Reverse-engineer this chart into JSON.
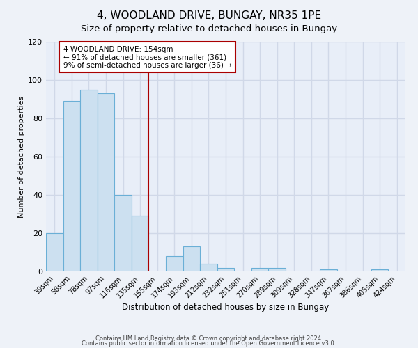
{
  "title": "4, WOODLAND DRIVE, BUNGAY, NR35 1PE",
  "subtitle": "Size of property relative to detached houses in Bungay",
  "xlabel": "Distribution of detached houses by size in Bungay",
  "ylabel": "Number of detached properties",
  "bar_labels": [
    "39sqm",
    "58sqm",
    "78sqm",
    "97sqm",
    "116sqm",
    "135sqm",
    "155sqm",
    "174sqm",
    "193sqm",
    "212sqm",
    "232sqm",
    "251sqm",
    "270sqm",
    "289sqm",
    "309sqm",
    "328sqm",
    "347sqm",
    "367sqm",
    "386sqm",
    "405sqm",
    "424sqm"
  ],
  "bar_values": [
    20,
    89,
    95,
    93,
    40,
    29,
    0,
    8,
    13,
    4,
    2,
    0,
    2,
    2,
    0,
    0,
    1,
    0,
    0,
    1,
    0
  ],
  "bar_color": "#cce0f0",
  "bar_edge_color": "#6aafd6",
  "marker_index": 6,
  "annotation_title": "4 WOODLAND DRIVE: 154sqm",
  "annotation_line1": "← 91% of detached houses are smaller (361)",
  "annotation_line2": "9% of semi-detached houses are larger (36) →",
  "red_line_color": "#aa0000",
  "annotation_box_edge": "#aa0000",
  "ylim": [
    0,
    120
  ],
  "yticks": [
    0,
    20,
    40,
    60,
    80,
    100,
    120
  ],
  "footnote1": "Contains HM Land Registry data © Crown copyright and database right 2024.",
  "footnote2": "Contains public sector information licensed under the Open Government Licence v3.0.",
  "background_color": "#eef2f8",
  "plot_bg_color": "#e8eef8",
  "grid_color": "#d0d8e8",
  "title_fontsize": 11,
  "subtitle_fontsize": 9.5
}
